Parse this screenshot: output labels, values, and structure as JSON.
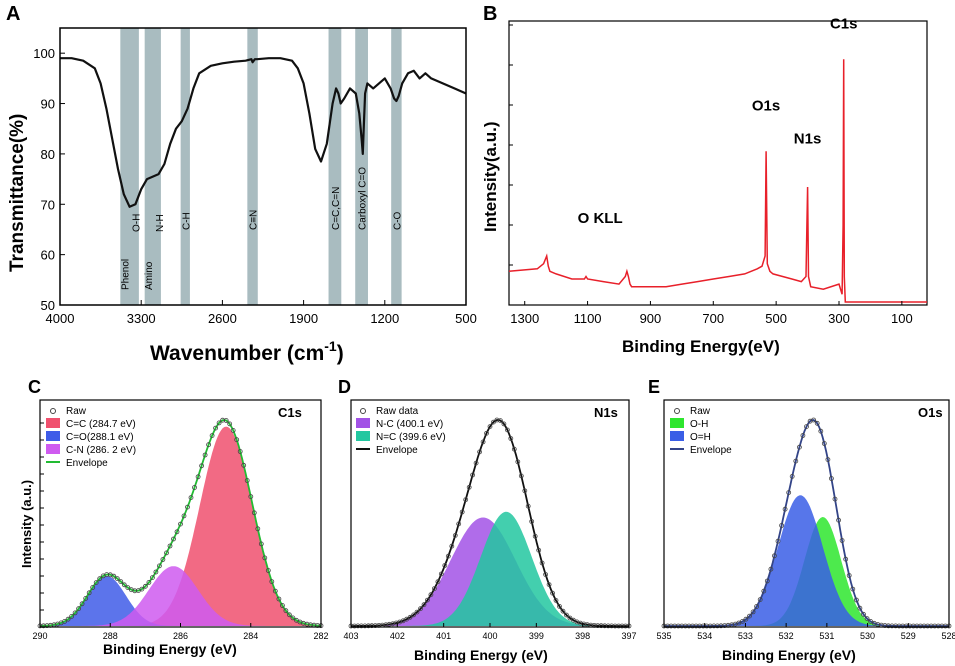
{
  "panel_labels": [
    "A",
    "B",
    "C",
    "D",
    "E"
  ],
  "chart_data": [
    {
      "panel": "A",
      "type": "line",
      "xlabel": "Wavenumber (cm",
      "xlabel_sup": "-1",
      "xlabel_close": ")",
      "ylabel": "Transmittance(%)",
      "xlim": [
        4000,
        500
      ],
      "ylim": [
        50,
        105
      ],
      "xticks": [
        4000,
        3300,
        2600,
        1900,
        1200,
        500
      ],
      "yticks": [
        50,
        60,
        70,
        80,
        90,
        100
      ],
      "bands": [
        {
          "center": 3400,
          "width": 160,
          "labels": [
            "Phenol",
            "O-H"
          ]
        },
        {
          "center": 3200,
          "width": 140,
          "labels": [
            "Amino",
            "N-H"
          ]
        },
        {
          "center": 2920,
          "width": 80,
          "labels": [
            "C-H"
          ]
        },
        {
          "center": 2340,
          "width": 90,
          "labels": [
            "C≡N"
          ]
        },
        {
          "center": 1630,
          "width": 110,
          "labels": [
            "C=C,C=N"
          ]
        },
        {
          "center": 1400,
          "width": 110,
          "labels": [
            "Carboxyl C=O"
          ]
        },
        {
          "center": 1100,
          "width": 90,
          "labels": [
            "C-O"
          ]
        }
      ],
      "x": [
        4000,
        3900,
        3800,
        3700,
        3650,
        3600,
        3550,
        3500,
        3450,
        3400,
        3350,
        3300,
        3250,
        3200,
        3150,
        3100,
        3050,
        3000,
        2950,
        2900,
        2850,
        2800,
        2700,
        2600,
        2500,
        2400,
        2350,
        2340,
        2320,
        2300,
        2200,
        2100,
        2000,
        1950,
        1900,
        1850,
        1800,
        1750,
        1700,
        1650,
        1620,
        1600,
        1580,
        1550,
        1500,
        1450,
        1420,
        1400,
        1390,
        1380,
        1370,
        1350,
        1300,
        1250,
        1200,
        1150,
        1120,
        1100,
        1080,
        1050,
        1000,
        950,
        900,
        850,
        800,
        700,
        600,
        500
      ],
      "y": [
        99,
        99,
        98.5,
        97,
        94,
        89,
        83,
        77,
        72,
        69.5,
        70,
        73,
        75,
        75.5,
        76,
        78,
        82,
        85,
        86.5,
        89,
        93,
        96,
        97.5,
        98,
        98.3,
        98.5,
        98.8,
        98.2,
        98.8,
        98.8,
        99,
        99,
        98.5,
        97,
        94,
        88,
        81,
        78.5,
        82,
        90,
        93,
        92,
        90,
        91,
        93,
        92,
        88,
        83,
        80,
        86,
        92,
        94,
        93,
        94,
        95,
        93,
        91,
        90.5,
        91.5,
        94,
        96,
        96.5,
        95,
        96,
        95,
        94,
        93,
        92
      ],
      "line_color": "#111111",
      "band_color": "#a9bcc0"
    },
    {
      "panel": "B",
      "type": "line",
      "xlabel": "Binding Energy(eV)",
      "ylabel": "Intensity(a.u.)",
      "xlim": [
        1350,
        20
      ],
      "xticks": [
        1300,
        1100,
        900,
        700,
        500,
        300,
        100
      ],
      "annotations": [
        {
          "text": "C1s",
          "x": 285,
          "y": 1.07
        },
        {
          "text": "O1s",
          "x": 532,
          "y": 0.75
        },
        {
          "text": "N1s",
          "x": 400,
          "y": 0.62
        },
        {
          "text": "O KLL",
          "x": 1060,
          "y": 0.31
        }
      ],
      "x": [
        1350,
        1260,
        1240,
        1230,
        1225,
        1220,
        1200,
        1150,
        1110,
        1105,
        1100,
        1050,
        1000,
        980,
        975,
        970,
        965,
        960,
        950,
        900,
        850,
        800,
        750,
        700,
        650,
        600,
        560,
        545,
        535,
        532,
        528,
        520,
        510,
        450,
        420,
        405,
        402,
        400,
        397,
        390,
        350,
        300,
        290,
        287,
        285,
        283,
        280,
        270,
        200,
        150,
        100,
        50,
        20
      ],
      "y": [
        0.12,
        0.13,
        0.15,
        0.18,
        0.14,
        0.12,
        0.11,
        0.09,
        0.09,
        0.1,
        0.09,
        0.08,
        0.07,
        0.1,
        0.12,
        0.1,
        0.07,
        0.06,
        0.06,
        0.06,
        0.06,
        0.07,
        0.08,
        0.09,
        0.1,
        0.11,
        0.13,
        0.14,
        0.18,
        0.59,
        0.15,
        0.12,
        0.11,
        0.09,
        0.08,
        0.1,
        0.3,
        0.45,
        0.1,
        0.06,
        0.05,
        0.07,
        0.03,
        0.3,
        0.95,
        0.1,
        0.0,
        0.0,
        0.0,
        0.0,
        0.0,
        0.0,
        0.0
      ],
      "line_color": "#e8202a"
    },
    {
      "panel": "C",
      "type": "area",
      "title": "C1s",
      "xlabel": "Binding Energy (eV)",
      "ylabel": "Intensity (a.u.)",
      "xlim": [
        290,
        282
      ],
      "xticks": [
        290,
        288,
        286,
        284,
        282
      ],
      "series": [
        {
          "name": "C=C (284.7 eV)",
          "center": 284.7,
          "height": 1.0,
          "sigma": 0.75,
          "color": "#f0506e"
        },
        {
          "name": "C=O(288.1 eV)",
          "center": 288.1,
          "height": 0.25,
          "sigma": 0.55,
          "color": "#3f5ce8"
        },
        {
          "name": "C-N (286. 2 eV)",
          "center": 286.2,
          "height": 0.3,
          "sigma": 0.7,
          "color": "#cf5bf0"
        }
      ],
      "raw_label": "Raw",
      "envelope_label": "Envelope",
      "envelope_color": "#22bb33"
    },
    {
      "panel": "D",
      "type": "area",
      "title": "N1s",
      "xlabel": "Binding Energy (eV)",
      "xlim": [
        403,
        397
      ],
      "xticks": [
        403,
        402,
        401,
        400,
        399,
        398,
        397
      ],
      "series": [
        {
          "name": "N-C (400.1 eV)",
          "center": 400.15,
          "height": 0.57,
          "sigma": 0.7,
          "color": "#a252e6"
        },
        {
          "name": "N=C (399.6 eV)",
          "center": 399.65,
          "height": 0.6,
          "sigma": 0.55,
          "color": "#22c7a0"
        }
      ],
      "raw_label": "Raw data",
      "envelope_label": "Envelope",
      "envelope_color": "#111111"
    },
    {
      "panel": "E",
      "type": "area",
      "title": "O1s",
      "xlabel": "Binding Energy (eV)",
      "xlim": [
        535,
        528
      ],
      "xticks": [
        535,
        534,
        533,
        532,
        531,
        530,
        529,
        528
      ],
      "series": [
        {
          "name": "O-H",
          "center": 531.1,
          "height": 0.6,
          "sigma": 0.45,
          "color": "#2ee62e"
        },
        {
          "name": "O=H",
          "center": 531.65,
          "height": 0.72,
          "sigma": 0.55,
          "color": "#3a5ee6"
        }
      ],
      "raw_label": "Raw",
      "envelope_label": "Envelope",
      "envelope_color": "#334488"
    }
  ]
}
